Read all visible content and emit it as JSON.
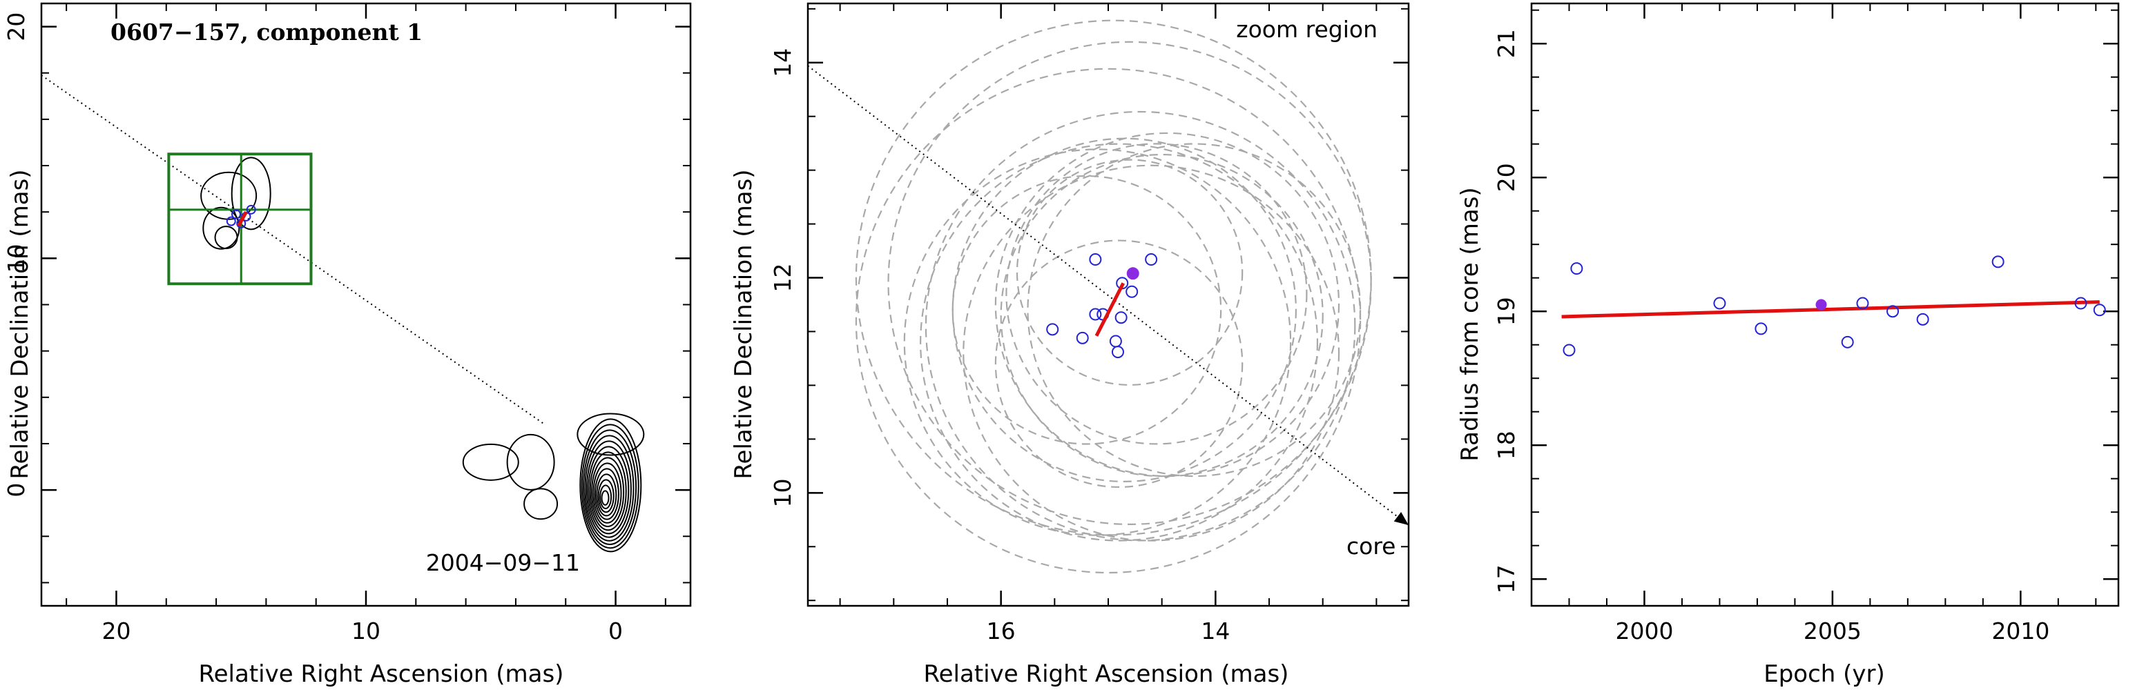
{
  "chart_data": [
    {
      "type": "scatter",
      "panel": "left",
      "title": "0607−157, component 1",
      "xlabel": "Relative Right Ascension (mas)",
      "ylabel": "Relative Declination (mas)",
      "xlim": [
        23,
        -3
      ],
      "ylim": [
        -5,
        21
      ],
      "xticks": [
        20,
        10,
        0
      ],
      "yticks": [
        0,
        10,
        20
      ],
      "xtick_labels": [
        "20",
        "10",
        "0"
      ],
      "ytick_labels": [
        "0",
        "10",
        "20"
      ],
      "date_label": "2004−09−11",
      "direction_line": {
        "from": [
          23,
          17.9
        ],
        "to": [
          2.8,
          2.8
        ],
        "style": "dotted"
      },
      "zoom_box": {
        "ra": [
          12.2,
          17.9
        ],
        "dec": [
          8.9,
          14.5
        ],
        "cross_ra": 15.0,
        "cross_dec": 12.1,
        "color": "#1e7a1e"
      },
      "points": [
        [
          15.4,
          11.6
        ],
        [
          14.6,
          12.1
        ],
        [
          15.0,
          11.5
        ],
        [
          14.8,
          11.8
        ],
        [
          15.2,
          11.9
        ]
      ],
      "fit_line": {
        "from": [
          15.1,
          11.4
        ],
        "to": [
          14.8,
          12.0
        ],
        "color": "#e01010"
      },
      "colors": {
        "points": "#2323d6",
        "fit": "#e01010",
        "box": "#1e7a1e"
      }
    },
    {
      "type": "scatter",
      "panel": "middle",
      "title": "",
      "annotation": "zoom region",
      "core_label": "core",
      "xlabel": "Relative Right Ascension (mas)",
      "ylabel": "Relative Declination (mas)",
      "xlim": [
        17.8,
        12.2
      ],
      "ylim": [
        8.95,
        14.55
      ],
      "xticks": [
        16,
        14
      ],
      "yticks": [
        10,
        12,
        14
      ],
      "xtick_labels": [
        "16",
        "14"
      ],
      "ytick_labels": [
        "10",
        "12",
        "14"
      ],
      "points": [
        [
          15.12,
          12.17
        ],
        [
          14.6,
          12.17
        ],
        [
          14.87,
          11.95
        ],
        [
          14.78,
          11.87
        ],
        [
          15.12,
          11.66
        ],
        [
          15.05,
          11.66
        ],
        [
          14.88,
          11.63
        ],
        [
          15.52,
          11.52
        ],
        [
          15.24,
          11.44
        ],
        [
          14.93,
          11.41
        ],
        [
          14.91,
          11.31
        ]
      ],
      "highlighted_point": [
        14.77,
        12.04
      ],
      "fit_line": {
        "from": [
          15.11,
          11.46
        ],
        "to": [
          14.86,
          11.95
        ]
      },
      "direction_arrow": {
        "from": [
          17.8,
          13.97
        ],
        "to": [
          12.2,
          9.7
        ]
      },
      "error_circles": [
        {
          "center": [
            14.95,
            12.0
          ],
          "radius": 2.4
        },
        {
          "center": [
            14.8,
            11.95
          ],
          "radius": 2.25
        },
        {
          "center": [
            15.0,
            11.6
          ],
          "radius": 2.35
        },
        {
          "center": [
            14.7,
            11.55
          ],
          "radius": 2.0
        },
        {
          "center": [
            14.9,
            11.4
          ],
          "radius": 1.85
        },
        {
          "center": [
            14.6,
            11.3
          ],
          "radius": 1.75
        },
        {
          "center": [
            15.1,
            11.4
          ],
          "radius": 1.8
        },
        {
          "center": [
            14.85,
            11.7
          ],
          "radius": 1.6
        },
        {
          "center": [
            14.5,
            11.65
          ],
          "radius": 1.5
        },
        {
          "center": [
            14.45,
            11.75
          ],
          "radius": 1.6
        },
        {
          "center": [
            14.9,
            11.2
          ],
          "radius": 1.15
        },
        {
          "center": [
            14.2,
            11.7
          ],
          "radius": 1.55
        },
        {
          "center": [
            14.8,
            12.05
          ],
          "radius": 1.05
        },
        {
          "center": [
            14.55,
            11.85
          ],
          "radius": 1.4
        },
        {
          "center": [
            15.2,
            11.7
          ],
          "radius": 1.25
        }
      ],
      "colors": {
        "points": "#2323d6",
        "highlight": "#8a2be2",
        "fit": "#e01010",
        "circles": "#a8a8a8"
      }
    },
    {
      "type": "scatter",
      "panel": "right",
      "title": "",
      "xlabel": "Epoch (yr)",
      "ylabel": "Radius from core (mas)",
      "xlim": [
        1997,
        2012.6
      ],
      "ylim": [
        16.8,
        21.3
      ],
      "xticks": [
        2000,
        2005,
        2010
      ],
      "yticks": [
        17,
        18,
        19,
        20,
        21
      ],
      "xtick_labels": [
        "2000",
        "2005",
        "2010"
      ],
      "ytick_labels": [
        "17",
        "18",
        "19",
        "20",
        "21"
      ],
      "points": [
        [
          1998.0,
          18.71
        ],
        [
          1998.2,
          19.32
        ],
        [
          2002.0,
          19.06
        ],
        [
          2003.1,
          18.87
        ],
        [
          2005.4,
          18.77
        ],
        [
          2005.8,
          19.06
        ],
        [
          2006.6,
          19.0
        ],
        [
          2007.4,
          18.94
        ],
        [
          2009.4,
          19.37
        ],
        [
          2011.6,
          19.06
        ],
        [
          2012.1,
          19.01
        ]
      ],
      "highlighted_point": [
        2004.7,
        19.05
      ],
      "fit_line": {
        "from": [
          1997.8,
          18.96
        ],
        "to": [
          2012.1,
          19.07
        ]
      },
      "colors": {
        "points": "#2323d6",
        "highlight": "#8a2be2",
        "fit": "#e01010"
      }
    }
  ]
}
